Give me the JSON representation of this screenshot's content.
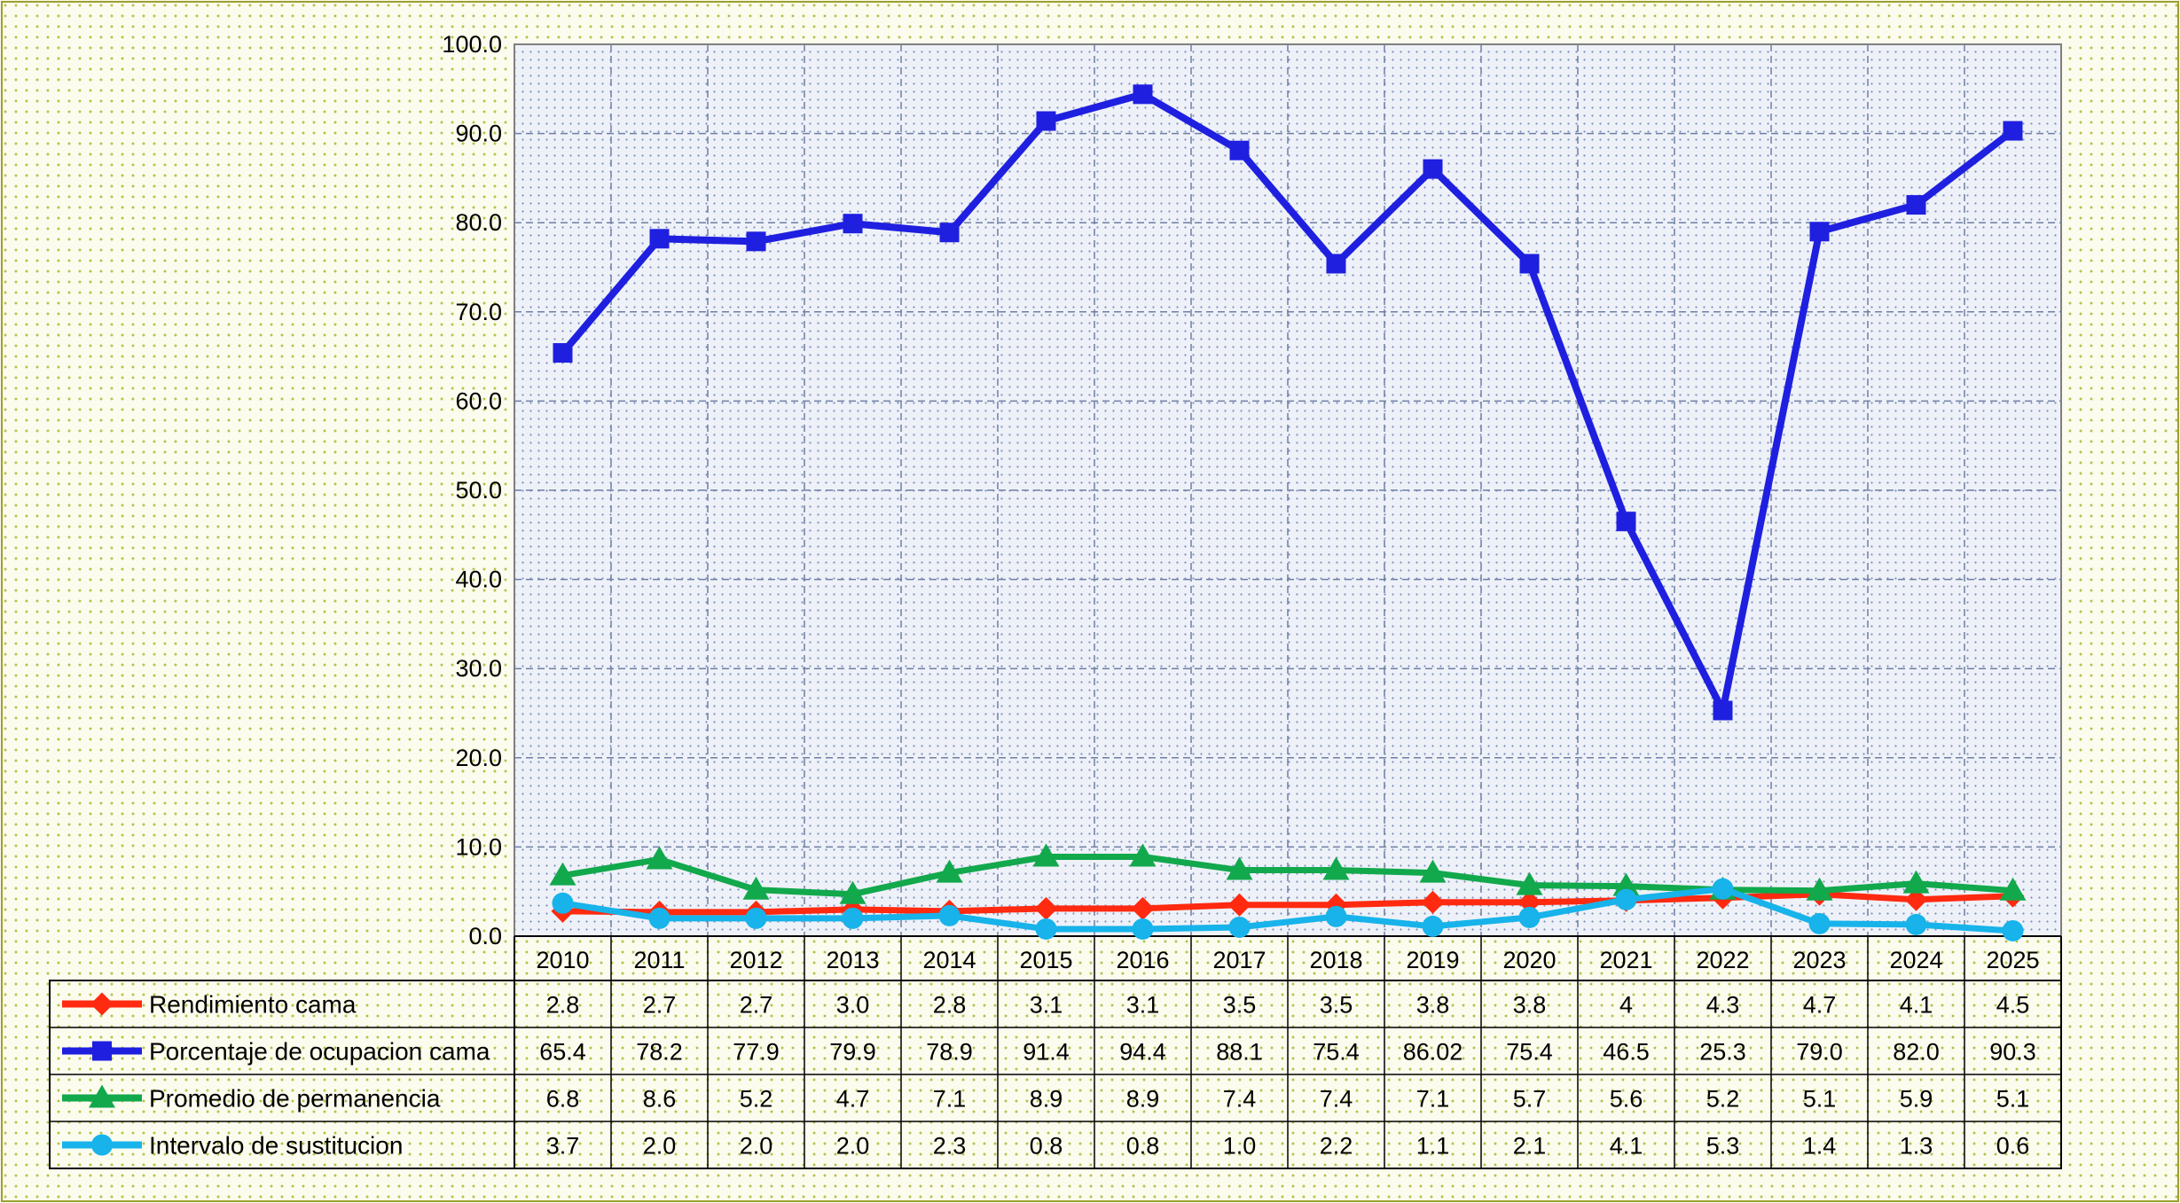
{
  "chart_data": {
    "type": "line",
    "title": "",
    "xlabel": "",
    "ylabel": "",
    "ylim": [
      0,
      100
    ],
    "ytick_labels": [
      "0.0",
      "10.0",
      "20.0",
      "30.0",
      "40.0",
      "50.0",
      "60.0",
      "70.0",
      "80.0",
      "90.0",
      "100.0"
    ],
    "grid": true,
    "legend_placement": "data-table-left",
    "categories": [
      "2010",
      "2011",
      "2012",
      "2013",
      "2014",
      "2015",
      "2016",
      "2017",
      "2018",
      "2019",
      "2020",
      "2021",
      "2022",
      "2023",
      "2024",
      "2025"
    ],
    "series": [
      {
        "name": "Rendimiento cama",
        "color": "#ff2a10",
        "marker": "diamond",
        "values": [
          2.8,
          2.7,
          2.7,
          3.0,
          2.8,
          3.1,
          3.1,
          3.5,
          3.5,
          3.8,
          3.8,
          4,
          4.3,
          4.7,
          4.1,
          4.5
        ],
        "labels": [
          "2.8",
          "2.7",
          "2.7",
          "3.0",
          "2.8",
          "3.1",
          "3.1",
          "3.5",
          "3.5",
          "3.8",
          "3.8",
          "4",
          "4.3",
          "4.7",
          "4.1",
          "4.5"
        ]
      },
      {
        "name": "Porcentaje de ocupacion cama",
        "color": "#1f1fe0",
        "marker": "square",
        "values": [
          65.4,
          78.2,
          77.9,
          79.9,
          78.9,
          91.4,
          94.4,
          88.1,
          75.4,
          86.02,
          75.4,
          46.5,
          25.3,
          79.0,
          82.0,
          90.3
        ],
        "labels": [
          "65.4",
          "78.2",
          "77.9",
          "79.9",
          "78.9",
          "91.4",
          "94.4",
          "88.1",
          "75.4",
          "86.02",
          "75.4",
          "46.5",
          "25.3",
          "79.0",
          "82.0",
          "90.3"
        ]
      },
      {
        "name": "Promedio de permanencia",
        "color": "#12a84c",
        "marker": "triangle",
        "values": [
          6.8,
          8.6,
          5.2,
          4.7,
          7.1,
          8.9,
          8.9,
          7.4,
          7.4,
          7.1,
          5.7,
          5.6,
          5.2,
          5.1,
          5.9,
          5.1
        ],
        "labels": [
          "6.8",
          "8.6",
          "5.2",
          "4.7",
          "7.1",
          "8.9",
          "8.9",
          "7.4",
          "7.4",
          "7.1",
          "5.7",
          "5.6",
          "5.2",
          "5.1",
          "5.9",
          "5.1"
        ]
      },
      {
        "name": "Intervalo de sustitucion",
        "color": "#17b3ea",
        "marker": "circle",
        "values": [
          3.7,
          2.0,
          2.0,
          2.0,
          2.3,
          0.8,
          0.8,
          1.0,
          2.2,
          1.1,
          2.1,
          4.1,
          5.3,
          1.4,
          1.3,
          0.6
        ],
        "labels": [
          "3.7",
          "2.0",
          "2.0",
          "2.0",
          "2.3",
          "0.8",
          "0.8",
          "1.0",
          "2.2",
          "1.1",
          "2.1",
          "4.1",
          "5.3",
          "1.4",
          "1.3",
          "0.6"
        ]
      }
    ]
  }
}
